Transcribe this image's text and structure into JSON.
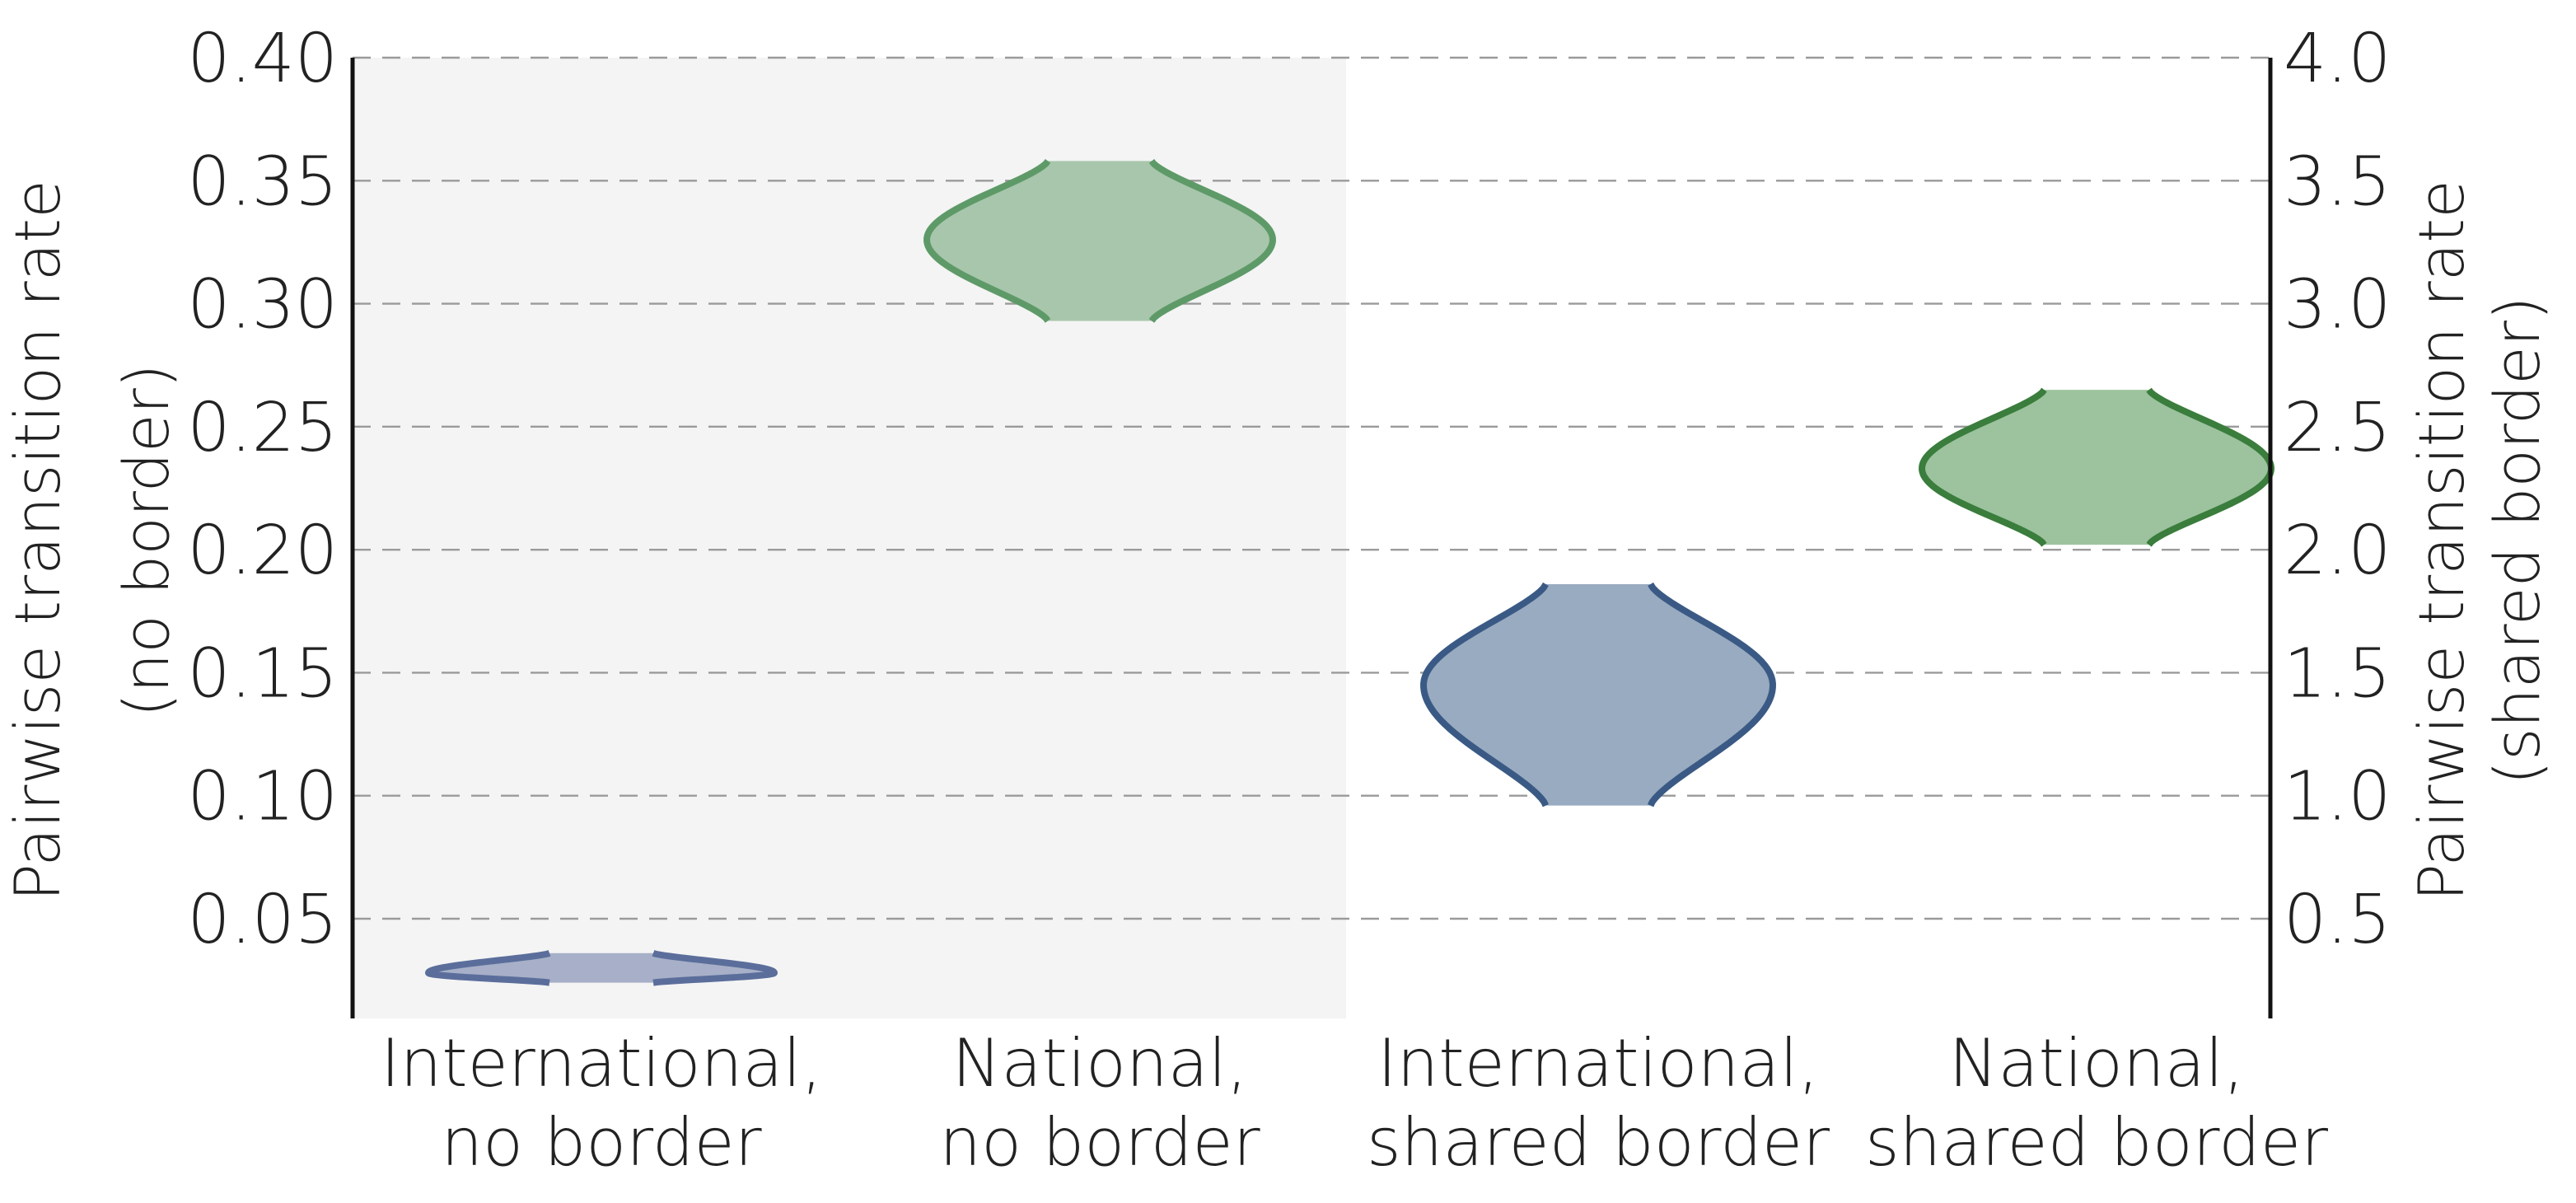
{
  "chart_data": {
    "type": "violin",
    "title": "",
    "categories": [
      {
        "line1": "International,",
        "line2": "no border"
      },
      {
        "line1": "National,",
        "line2": "no border"
      },
      {
        "line1": "International,",
        "line2": "shared border"
      },
      {
        "line1": "National,",
        "line2": "shared border"
      }
    ],
    "left_axis": {
      "label_line1": "Pairwise transition rate",
      "label_line2": "(no border)",
      "range": [
        0.0,
        0.4
      ],
      "ticks": [
        "0.40",
        "0.35",
        "0.30",
        "0.25",
        "0.20",
        "0.15",
        "0.10",
        "0.05"
      ]
    },
    "right_axis": {
      "label_line1": "Pairwise transition rate",
      "label_line2": "(shared border)",
      "range": [
        0.0,
        4.0
      ],
      "ticks": [
        "4.0",
        "3.5",
        "3.0",
        "2.5",
        "2.0",
        "1.5",
        "1.0",
        "0.5"
      ]
    },
    "violins": [
      {
        "category_index": 0,
        "axis": "left",
        "min": 0.024,
        "max": 0.036,
        "center": 0.028,
        "color": "#5b6e9b",
        "fill": "#a7b0c8"
      },
      {
        "category_index": 1,
        "axis": "left",
        "min": 0.293,
        "max": 0.358,
        "center": 0.326,
        "color": "#5e9a68",
        "fill": "#a8c6ab"
      },
      {
        "category_index": 2,
        "axis": "right",
        "min": 0.96,
        "max": 1.86,
        "center": 1.45,
        "color": "#3a5a85",
        "fill": "#99abc0"
      },
      {
        "category_index": 3,
        "axis": "right",
        "min": 2.02,
        "max": 2.65,
        "center": 2.33,
        "color": "#3a7d3c",
        "fill": "#9cc39d"
      }
    ],
    "grid": true,
    "shaded_region": {
      "from_category": 0,
      "to_category": 1,
      "color": "#f4f4f4"
    }
  }
}
